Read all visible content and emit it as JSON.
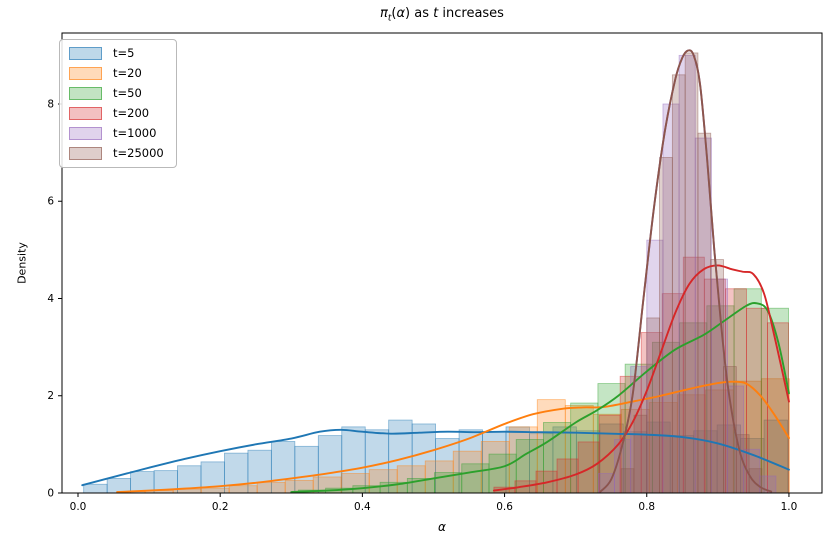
{
  "title": {
    "pi": "π",
    "sub": "t",
    "open": "(",
    "alpha": "α",
    "close": ")",
    "middle": " as ",
    "tvar": "t",
    "end": " increases",
    "text": "πₜ(α) as t increases"
  },
  "chart_data": {
    "type": "histogram+kde",
    "title": "πₜ(α) as t increases",
    "xlabel": "α",
    "ylabel": "Density",
    "grid": false,
    "legend_position": "upper left",
    "xlim": [
      -0.0225,
      1.0465
    ],
    "ylim": [
      0,
      9.46
    ],
    "x_tick_values": [
      0.0,
      0.2,
      0.4,
      0.6,
      0.8,
      1.0
    ],
    "x_tick_labels": [
      "0.0",
      "0.2",
      "0.4",
      "0.6",
      "0.8",
      "1.0"
    ],
    "y_tick_values": [
      0,
      2,
      4,
      6,
      8
    ],
    "y_tick_labels": [
      "0",
      "2",
      "4",
      "6",
      "8"
    ],
    "axis_color": "#000000",
    "series": [
      {
        "id": "t5",
        "label": "t=5",
        "color": "#1f77b4",
        "hist": {
          "bin_start": 0.008,
          "bin_width": 0.033,
          "heights": [
            0.18,
            0.3,
            0.44,
            0.46,
            0.56,
            0.64,
            0.82,
            0.88,
            1.06,
            0.96,
            1.18,
            1.36,
            1.3,
            1.5,
            1.42,
            1.12,
            1.3,
            1.26,
            1.36,
            1.22,
            1.36,
            1.28,
            1.42,
            1.26,
            1.46,
            1.18,
            1.28,
            1.4,
            1.12,
            1.5
          ]
        },
        "kde": {
          "x": [
            0.006,
            0.05,
            0.1,
            0.15,
            0.2,
            0.25,
            0.3,
            0.34,
            0.37,
            0.4,
            0.44,
            0.48,
            0.52,
            0.56,
            0.6,
            0.65,
            0.7,
            0.75,
            0.8,
            0.85,
            0.9,
            0.95,
            1.0
          ],
          "y": [
            0.16,
            0.33,
            0.52,
            0.7,
            0.86,
            1.0,
            1.12,
            1.26,
            1.3,
            1.26,
            1.22,
            1.24,
            1.26,
            1.25,
            1.26,
            1.25,
            1.24,
            1.22,
            1.2,
            1.15,
            1.02,
            0.78,
            0.48
          ]
        }
      },
      {
        "id": "t20",
        "label": "t=20",
        "color": "#ff7f0e",
        "hist": {
          "bin_start": 0.055,
          "bin_width": 0.0394,
          "heights": [
            0.03,
            0.05,
            0.08,
            0.1,
            0.15,
            0.22,
            0.26,
            0.33,
            0.4,
            0.48,
            0.56,
            0.66,
            0.86,
            1.06,
            1.36,
            1.92,
            1.8,
            1.62,
            1.72,
            1.86,
            2.02,
            2.12,
            2.3,
            2.35
          ]
        },
        "kde": {
          "x": [
            0.055,
            0.1,
            0.15,
            0.2,
            0.25,
            0.3,
            0.35,
            0.4,
            0.45,
            0.5,
            0.55,
            0.6,
            0.64,
            0.68,
            0.71,
            0.74,
            0.78,
            0.82,
            0.86,
            0.9,
            0.92,
            0.94,
            0.96,
            0.98,
            1.0
          ],
          "y": [
            0.02,
            0.05,
            0.09,
            0.14,
            0.21,
            0.3,
            0.4,
            0.52,
            0.68,
            0.88,
            1.12,
            1.42,
            1.62,
            1.73,
            1.76,
            1.77,
            1.88,
            2.0,
            2.14,
            2.26,
            2.29,
            2.25,
            2.0,
            1.6,
            1.13
          ]
        }
      },
      {
        "id": "t50",
        "label": "t=50",
        "color": "#2ca02c",
        "hist": {
          "bin_start": 0.31,
          "bin_width": 0.0383,
          "heights": [
            0.06,
            0.1,
            0.15,
            0.22,
            0.3,
            0.42,
            0.6,
            0.8,
            1.1,
            1.45,
            1.85,
            2.25,
            2.65,
            3.1,
            3.5,
            3.85,
            4.2,
            3.8
          ]
        },
        "kde": {
          "x": [
            0.3,
            0.35,
            0.4,
            0.45,
            0.5,
            0.55,
            0.6,
            0.63,
            0.66,
            0.7,
            0.73,
            0.76,
            0.8,
            0.84,
            0.88,
            0.91,
            0.94,
            0.955,
            0.97,
            0.985,
            1.0
          ],
          "y": [
            0.02,
            0.05,
            0.1,
            0.18,
            0.3,
            0.42,
            0.55,
            0.8,
            1.05,
            1.45,
            1.7,
            2.0,
            2.5,
            2.95,
            3.25,
            3.55,
            3.85,
            3.9,
            3.75,
            3.1,
            2.05
          ]
        }
      },
      {
        "id": "t200",
        "label": "t=200",
        "color": "#d62728",
        "hist": {
          "bin_start": 0.585,
          "bin_width": 0.0296,
          "heights": [
            0.12,
            0.25,
            0.45,
            0.7,
            1.05,
            1.6,
            2.4,
            3.3,
            4.1,
            4.85,
            4.4,
            4.2,
            3.8,
            3.5
          ]
        },
        "kde": {
          "x": [
            0.585,
            0.62,
            0.66,
            0.7,
            0.73,
            0.76,
            0.78,
            0.8,
            0.82,
            0.84,
            0.86,
            0.88,
            0.9,
            0.92,
            0.935,
            0.95,
            0.965,
            0.98,
            1.0
          ],
          "y": [
            0.05,
            0.12,
            0.22,
            0.38,
            0.6,
            1.0,
            1.45,
            2.1,
            2.9,
            3.7,
            4.3,
            4.6,
            4.68,
            4.6,
            4.55,
            4.5,
            4.1,
            3.2,
            1.88
          ]
        }
      },
      {
        "id": "t1000",
        "label": "t=1000",
        "color": "#9467bd",
        "hist": {
          "bin_start": 0.732,
          "bin_width": 0.0227,
          "heights": [
            0.4,
            1.1,
            2.6,
            5.2,
            8.0,
            9.0,
            7.3,
            4.4,
            2.2,
            0.9,
            0.35
          ]
        },
        "kde": {
          "x": [
            0.735,
            0.75,
            0.765,
            0.78,
            0.795,
            0.81,
            0.825,
            0.84,
            0.85,
            0.858,
            0.866,
            0.875,
            0.885,
            0.895,
            0.905,
            0.915,
            0.93,
            0.945,
            0.96,
            0.975
          ],
          "y": [
            0.03,
            0.28,
            0.95,
            2.0,
            3.95,
            5.85,
            7.4,
            8.5,
            8.95,
            9.1,
            9.0,
            8.4,
            6.85,
            5.0,
            3.4,
            2.1,
            0.9,
            0.35,
            0.12,
            0.03
          ]
        }
      },
      {
        "id": "t25000",
        "label": "t=25000",
        "color": "#8c564b",
        "hist": {
          "bin_start": 0.764,
          "bin_width": 0.018,
          "heights": [
            0.5,
            1.6,
            3.6,
            6.9,
            8.6,
            9.05,
            7.4,
            4.8,
            2.6,
            1.2,
            0.5
          ]
        },
        "kde": {
          "x": [
            0.735,
            0.75,
            0.765,
            0.78,
            0.795,
            0.81,
            0.825,
            0.84,
            0.85,
            0.858,
            0.866,
            0.875,
            0.885,
            0.895,
            0.905,
            0.915,
            0.93,
            0.945,
            0.96,
            0.975
          ],
          "y": [
            0.03,
            0.28,
            0.95,
            2.0,
            3.95,
            5.85,
            7.4,
            8.5,
            8.95,
            9.1,
            9.0,
            8.4,
            6.85,
            5.0,
            3.4,
            2.1,
            0.9,
            0.35,
            0.12,
            0.03
          ]
        }
      }
    ],
    "style": {
      "hist_fill_opacity": 0.28,
      "hist_edge_opacity": 0.5,
      "kde_line_width": 1.9
    }
  }
}
